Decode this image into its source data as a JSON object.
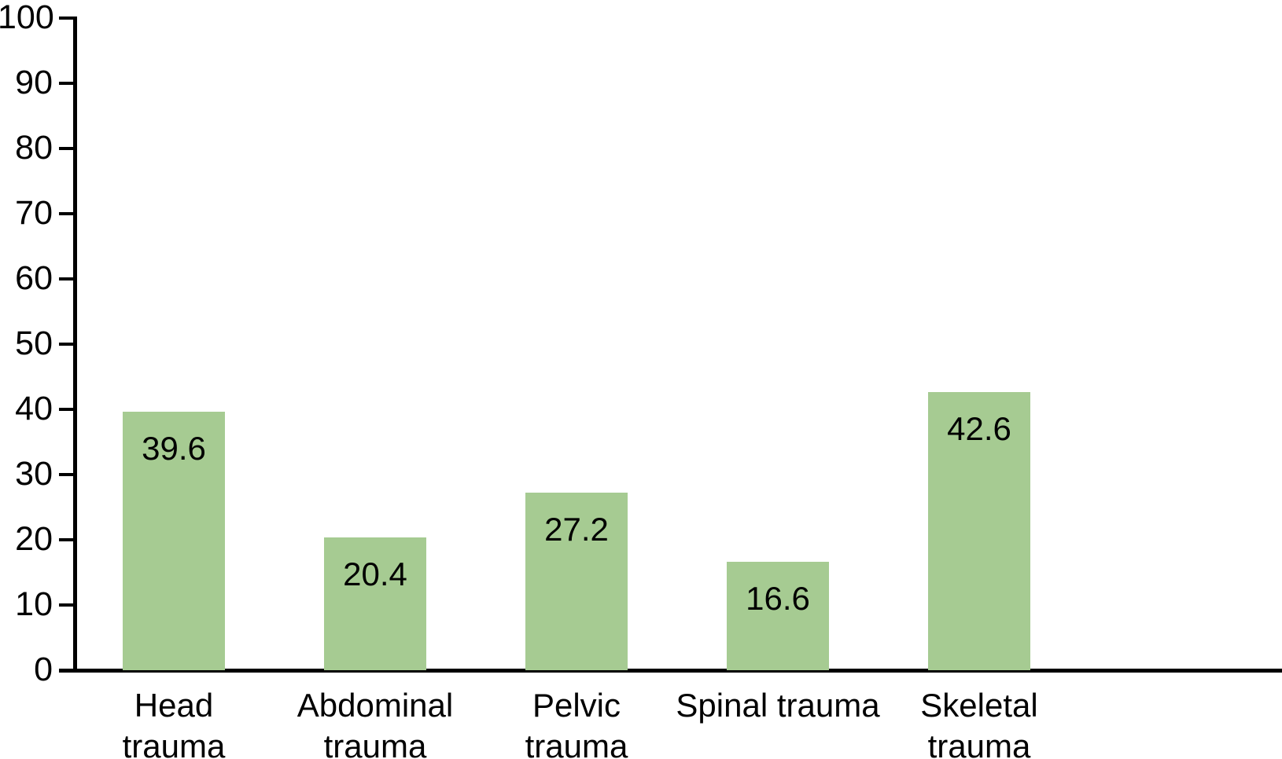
{
  "chart_data": {
    "type": "bar",
    "title": "",
    "xlabel": "",
    "ylabel": "",
    "categories": [
      "Head\ntrauma",
      "Abdominal\ntrauma",
      "Pelvic\ntrauma",
      "Spinal trauma",
      "Skeletal\ntrauma"
    ],
    "values": [
      39.6,
      20.4,
      27.2,
      16.6,
      42.6
    ],
    "value_labels": [
      "39.6",
      "20.4",
      "27.2",
      "16.6",
      "42.6"
    ],
    "ylim": [
      0,
      100
    ],
    "yticks": [
      0,
      10,
      20,
      30,
      40,
      50,
      60,
      70,
      80,
      90,
      100
    ],
    "grid": "off",
    "legend": "none",
    "bar_color": "#a6cb92",
    "axis_color": "#000000",
    "text_color": "#000000"
  }
}
